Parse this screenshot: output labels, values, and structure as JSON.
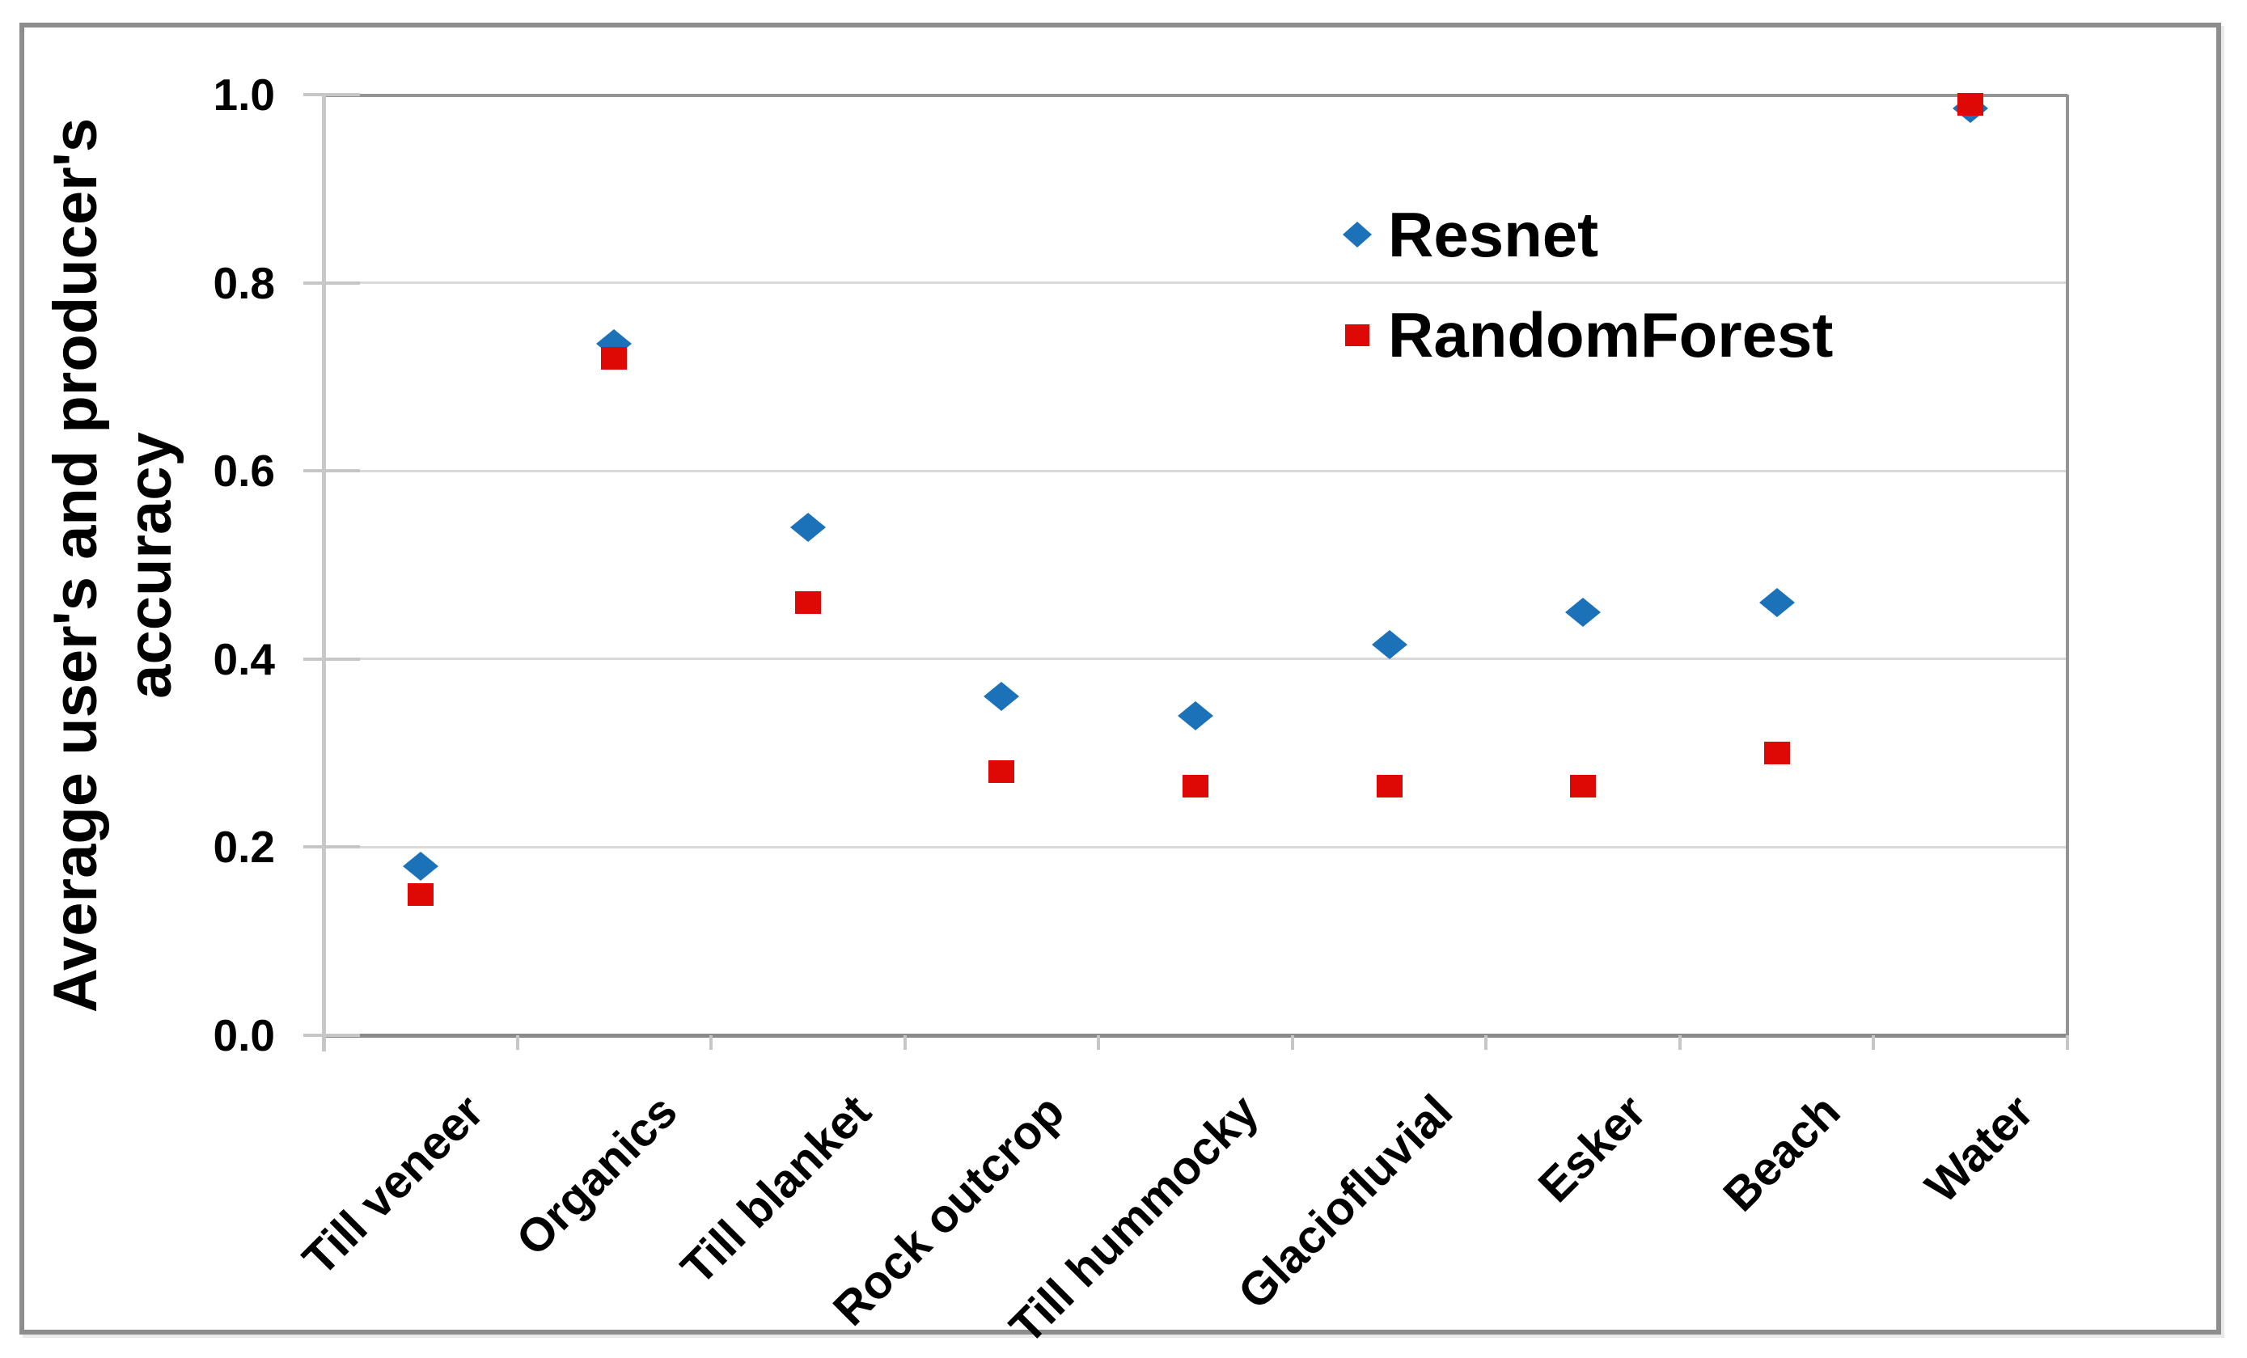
{
  "chart_data": {
    "type": "scatter",
    "title": "",
    "xlabel": "",
    "ylabel": "Average user's and producer's accuracy",
    "ylabel_lines": [
      "Average user's and producer's",
      "accuracy"
    ],
    "categories": [
      "Till veneer",
      "Organics",
      "Till blanket",
      "Rock outcrop",
      "Till hummocky",
      "Glaciofluvial",
      "Esker",
      "Beach",
      "Water"
    ],
    "series": [
      {
        "name": "Resnet",
        "marker": "diamond",
        "color": "#1b72b8",
        "values": [
          0.18,
          0.735,
          0.54,
          0.36,
          0.34,
          0.415,
          0.45,
          0.46,
          0.985
        ]
      },
      {
        "name": "RandomForest",
        "marker": "square",
        "color": "#de0805",
        "values": [
          0.15,
          0.72,
          0.46,
          0.28,
          0.265,
          0.265,
          0.265,
          0.3,
          0.99
        ]
      }
    ],
    "y_axis": {
      "min": 0.0,
      "max": 1.0,
      "tick_step": 0.2,
      "tick_labels": [
        "0.0",
        "0.2",
        "0.4",
        "0.6",
        "0.8",
        "1.0"
      ]
    },
    "grid": "horizontal",
    "legend_position": "inside-upper-right"
  },
  "colors": {
    "background": "#ffffff",
    "frame_border": "#8d8d8d",
    "gridline": "#d9d9d9",
    "axis_dark": "#8a8a8a",
    "axis_light": "#c8c8c8",
    "tick": "#c6c6c6",
    "text": "#000000",
    "resnet_blue": "#1b72b8",
    "randomforest_red": "#de0805"
  }
}
